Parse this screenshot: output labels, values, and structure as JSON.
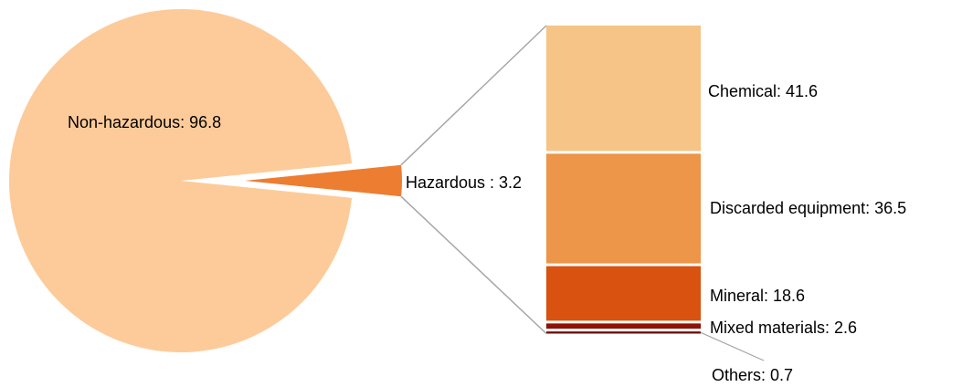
{
  "chart_data": [
    {
      "type": "pie",
      "slices": [
        {
          "label": "Non-hazardous",
          "value": 96.8,
          "display": "Non-hazardous: 96.8",
          "color": "#FDCB99"
        },
        {
          "label": "Hazardous",
          "value": 3.2,
          "display": "Hazardous : 3.2",
          "color": "#ED7D31"
        }
      ],
      "exploded": "Hazardous"
    },
    {
      "type": "bar",
      "stacked": true,
      "breakdown_of": "Hazardous",
      "segments": [
        {
          "label": "Chemical",
          "value": 41.6,
          "display": "Chemical: 41.6",
          "color": "#F5C486"
        },
        {
          "label": "Discarded equipment",
          "value": 36.5,
          "display": "Discarded equipment: 36.5",
          "color": "#ED9548"
        },
        {
          "label": "Mineral",
          "value": 18.6,
          "display": "Mineral: 18.6",
          "color": "#D9520F"
        },
        {
          "label": "Mixed materials",
          "value": 2.6,
          "display": "Mixed materials: 2.6",
          "color": "#8F1206"
        },
        {
          "label": "Others",
          "value": 0.7,
          "display": "Others: 0.7",
          "color": "#6B0F08"
        }
      ]
    }
  ],
  "colors": {
    "connector": "#A6A6A6",
    "background": "#FFFFFF"
  }
}
